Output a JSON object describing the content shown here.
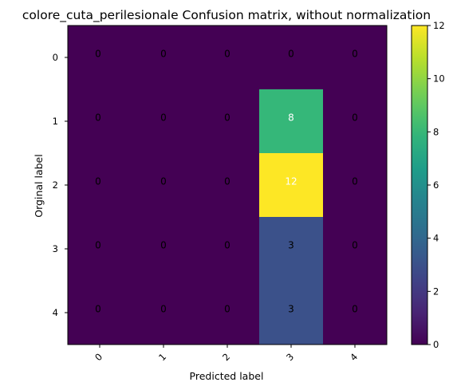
{
  "chart_data": {
    "type": "heatmap",
    "title": "colore_cuta_perilesionale Confusion matrix, without normalization",
    "xlabel": "Predicted label",
    "ylabel": "Orginal label",
    "x_categories": [
      "0",
      "1",
      "2",
      "3",
      "4"
    ],
    "y_categories": [
      "0",
      "1",
      "2",
      "3",
      "4"
    ],
    "values": [
      [
        0,
        0,
        0,
        0,
        0
      ],
      [
        0,
        0,
        0,
        8,
        0
      ],
      [
        0,
        0,
        0,
        12,
        0
      ],
      [
        0,
        0,
        0,
        3,
        0
      ],
      [
        0,
        0,
        0,
        3,
        0
      ]
    ],
    "colorbar": {
      "min": 0,
      "max": 12,
      "ticks": [
        "0",
        "2",
        "4",
        "6",
        "8",
        "10",
        "12"
      ]
    },
    "colormap": "viridis",
    "x_tick_rotation": "45",
    "grid": false
  }
}
